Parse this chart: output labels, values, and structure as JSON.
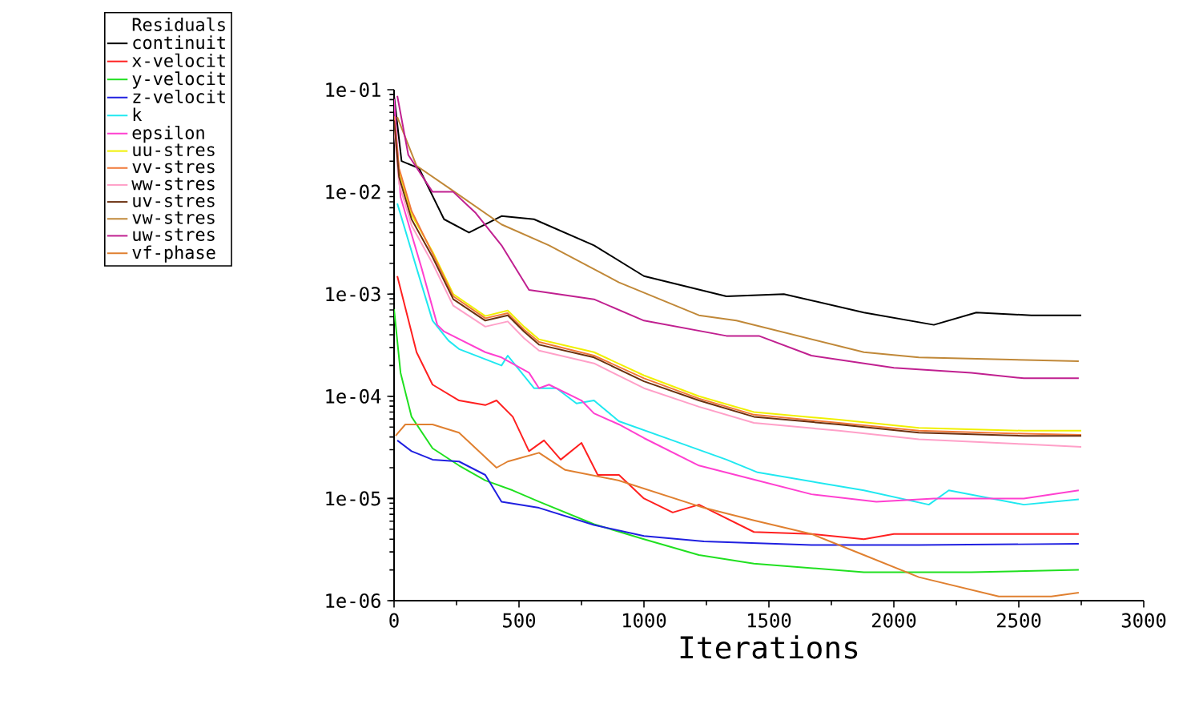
{
  "chart_data": {
    "type": "line",
    "xlabel": "Iterations",
    "legend_title": "Residuals",
    "legend": "top left",
    "log": "y",
    "grid": false,
    "marker": "none",
    "line_style": "solid",
    "xlim": [
      0,
      3000
    ],
    "xticks": [
      0,
      500,
      1000,
      1500,
      2000,
      2500,
      3000
    ],
    "ylim": [
      1e-06,
      0.1
    ],
    "yticks": [
      {
        "value": 1e-06,
        "label": "1e-06"
      },
      {
        "value": 1e-05,
        "label": "1e-05"
      },
      {
        "value": 0.0001,
        "label": "1e-04"
      },
      {
        "value": 0.001,
        "label": "1e-03"
      },
      {
        "value": 0.01,
        "label": "1e-02"
      },
      {
        "value": 0.1,
        "label": "1e-01"
      }
    ],
    "series": [
      {
        "name": "continuit",
        "color": "#000000",
        "x": [
          0,
          30,
          100,
          200,
          300,
          430,
          560,
          800,
          1000,
          1330,
          1560,
          1880,
          2160,
          2330,
          2550,
          2750
        ],
        "values": [
          0.087,
          0.02,
          0.017,
          0.0054,
          0.004,
          0.0058,
          0.0054,
          0.003,
          0.0015,
          0.00095,
          0.001,
          0.00066,
          0.0005,
          0.00066,
          0.00062,
          0.00062
        ]
      },
      {
        "name": "x-velocit",
        "color": "#ff2020",
        "x": [
          13,
          58,
          90,
          154,
          260,
          365,
          410,
          475,
          540,
          600,
          667,
          750,
          815,
          900,
          1000,
          1115,
          1220,
          1440,
          1670,
          1880,
          2000,
          2310,
          2740
        ],
        "values": [
          0.0015,
          0.00055,
          0.00027,
          0.00013,
          9.1e-05,
          8.2e-05,
          9.1e-05,
          6.3e-05,
          2.9e-05,
          3.7e-05,
          2.4e-05,
          3.5e-05,
          1.7e-05,
          1.7e-05,
          1e-05,
          7.3e-06,
          8.7e-06,
          4.7e-06,
          4.5e-06,
          4e-06,
          4.5e-06,
          4.5e-06,
          4.5e-06
        ]
      },
      {
        "name": "y-velocit",
        "color": "#20e020",
        "x": [
          0,
          26,
          70,
          154,
          260,
          365,
          475,
          580,
          800,
          1000,
          1220,
          1440,
          1880,
          2310,
          2740
        ],
        "values": [
          0.00071,
          0.00017,
          6.3e-05,
          3.1e-05,
          2.1e-05,
          1.5e-05,
          1.2e-05,
          9.3e-06,
          5.6e-06,
          4e-06,
          2.8e-06,
          2.3e-06,
          1.9e-06,
          1.9e-06,
          2e-06
        ]
      },
      {
        "name": "z-velocit",
        "color": "#2020e0",
        "x": [
          13,
          70,
          154,
          260,
          365,
          430,
          580,
          800,
          1000,
          1240,
          1670,
          2100,
          2740
        ],
        "values": [
          3.7e-05,
          2.9e-05,
          2.4e-05,
          2.3e-05,
          1.7e-05,
          9.3e-06,
          8.1e-06,
          5.5e-06,
          4.3e-06,
          3.8e-06,
          3.5e-06,
          3.5e-06,
          3.6e-06
        ]
      },
      {
        "name": "k",
        "color": "#20e8f0",
        "x": [
          13,
          90,
          154,
          218,
          260,
          430,
          455,
          560,
          650,
          730,
          800,
          900,
          1115,
          1330,
          1455,
          1880,
          2140,
          2220,
          2520,
          2740
        ],
        "values": [
          0.0077,
          0.0018,
          0.00055,
          0.00035,
          0.00029,
          0.0002,
          0.00025,
          0.00012,
          0.00012,
          8.5e-05,
          9.1e-05,
          5.7e-05,
          3.7e-05,
          2.4e-05,
          1.8e-05,
          1.2e-05,
          8.7e-06,
          1.2e-05,
          8.7e-06,
          9.8e-06
        ]
      },
      {
        "name": "epsilon",
        "color": "#ff40d0",
        "x": [
          0,
          26,
          110,
          173,
          200,
          365,
          430,
          540,
          580,
          620,
          750,
          800,
          900,
          1000,
          1220,
          1455,
          1670,
          1930,
          2160,
          2520,
          2740
        ],
        "values": [
          0.081,
          0.0089,
          0.0018,
          0.0005,
          0.00043,
          0.00027,
          0.00024,
          0.00017,
          0.00012,
          0.00013,
          9.1e-05,
          6.8e-05,
          5.3e-05,
          3.9e-05,
          2.1e-05,
          1.5e-05,
          1.1e-05,
          9.3e-06,
          1e-05,
          1e-05,
          1.2e-05
        ]
      },
      {
        "name": "uu-stres",
        "color": "#f0f000",
        "x": [
          0,
          20,
          70,
          154,
          237,
          365,
          455,
          520,
          580,
          800,
          1000,
          1220,
          1440,
          1780,
          2100,
          2520,
          2750
        ],
        "values": [
          0.046,
          0.016,
          0.006,
          0.0026,
          0.001,
          0.00061,
          0.00069,
          0.00048,
          0.00036,
          0.00027,
          0.00016,
          0.0001,
          7e-05,
          5.9e-05,
          4.9e-05,
          4.6e-05,
          4.6e-05
        ]
      },
      {
        "name": "vv-stres",
        "color": "#f07838",
        "x": [
          0,
          20,
          70,
          154,
          237,
          365,
          455,
          520,
          580,
          800,
          1000,
          1220,
          1440,
          1780,
          2100,
          2520,
          2750
        ],
        "values": [
          0.055,
          0.017,
          0.0065,
          0.0025,
          0.00095,
          0.00058,
          0.00065,
          0.00045,
          0.00034,
          0.00025,
          0.00015,
          9.5e-05,
          6.6e-05,
          5.5e-05,
          4.6e-05,
          4.3e-05,
          4.2e-05
        ]
      },
      {
        "name": "ww-stres",
        "color": "#ffa0c8",
        "x": [
          0,
          20,
          70,
          154,
          237,
          365,
          455,
          520,
          580,
          800,
          1000,
          1220,
          1440,
          1780,
          2100,
          2520,
          2750
        ],
        "values": [
          0.043,
          0.012,
          0.0047,
          0.002,
          0.00077,
          0.00048,
          0.00054,
          0.00037,
          0.00028,
          0.00021,
          0.00012,
          7.9e-05,
          5.5e-05,
          4.6e-05,
          3.8e-05,
          3.4e-05,
          3.2e-05
        ]
      },
      {
        "name": "uv-stres",
        "color": "#6b3010",
        "x": [
          0,
          20,
          70,
          154,
          237,
          365,
          455,
          520,
          580,
          800,
          1000,
          1220,
          1440,
          1780,
          2100,
          2520,
          2750
        ],
        "values": [
          0.05,
          0.014,
          0.0054,
          0.0023,
          0.00089,
          0.00055,
          0.00062,
          0.00043,
          0.00032,
          0.00024,
          0.00014,
          9.1e-05,
          6.3e-05,
          5.3e-05,
          4.4e-05,
          4.1e-05,
          4.1e-05
        ]
      },
      {
        "name": "vw-stres",
        "color": "#c08838",
        "x": [
          13,
          90,
          218,
          430,
          620,
          900,
          1220,
          1370,
          1880,
          2100,
          2740
        ],
        "values": [
          0.054,
          0.018,
          0.011,
          0.0048,
          0.003,
          0.0013,
          0.00062,
          0.00055,
          0.00027,
          0.00024,
          0.00022
        ]
      },
      {
        "name": "uw-stres",
        "color": "#c02090",
        "x": [
          13,
          57,
          154,
          237,
          327,
          430,
          540,
          800,
          1000,
          1330,
          1460,
          1670,
          2000,
          2310,
          2520,
          2740
        ],
        "values": [
          0.087,
          0.023,
          0.01,
          0.01,
          0.0062,
          0.003,
          0.0011,
          0.00089,
          0.00055,
          0.00039,
          0.00039,
          0.00025,
          0.00019,
          0.00017,
          0.00015,
          0.00015
        ]
      },
      {
        "name": "vf-phase",
        "color": "#e08030",
        "x": [
          6,
          45,
          154,
          260,
          410,
          455,
          580,
          685,
          900,
          1240,
          1440,
          1670,
          1880,
          2100,
          2420,
          2630,
          2740
        ],
        "values": [
          4.1e-05,
          5.3e-05,
          5.3e-05,
          4.4e-05,
          2e-05,
          2.3e-05,
          2.8e-05,
          1.9e-05,
          1.5e-05,
          8.1e-06,
          6.1e-06,
          4.5e-06,
          2.8e-06,
          1.7e-06,
          1.1e-06,
          1.1e-06,
          1.2e-06
        ]
      }
    ]
  }
}
